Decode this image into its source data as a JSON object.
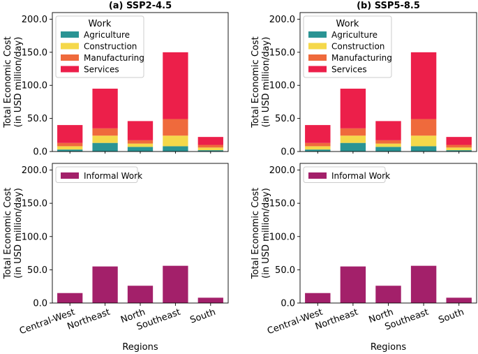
{
  "chart_data": [
    {
      "type": "bar",
      "stacked": true,
      "panel": "top-left",
      "title": "(a) SSP2-4.5",
      "xlabel": "",
      "ylabel": [
        "Total Economic Cost",
        "(in USD million/day)"
      ],
      "ylim": [
        0,
        210
      ],
      "yticks": [
        "0.0",
        "50.0",
        "100.0",
        "150.0",
        "200.0"
      ],
      "categories": [
        "Central-West",
        "Northeast",
        "North",
        "Southeast",
        "South"
      ],
      "legend_title": "Work",
      "legend_position": "top-left",
      "series": [
        {
          "name": "Agriculture",
          "color": "#2a9494",
          "values": [
            3,
            13,
            7,
            8,
            2
          ]
        },
        {
          "name": "Construction",
          "color": "#f5d84a",
          "values": [
            5,
            11,
            5,
            16,
            4
          ]
        },
        {
          "name": "Manufacturing",
          "color": "#ef6a3c",
          "values": [
            5,
            11,
            5,
            25,
            4
          ]
        },
        {
          "name": "Services",
          "color": "#ec1f4a",
          "values": [
            27,
            60,
            29,
            101,
            12
          ]
        }
      ]
    },
    {
      "type": "bar",
      "stacked": true,
      "panel": "top-right",
      "title": "(b) SSP5-8.5",
      "xlabel": "",
      "ylabel": [
        "Total Economic Cost",
        "(in USD million/day)"
      ],
      "ylim": [
        0,
        210
      ],
      "yticks": [
        "0.0",
        "50.0",
        "100.0",
        "150.0",
        "200.0"
      ],
      "categories": [
        "Central-West",
        "Northeast",
        "North",
        "Southeast",
        "South"
      ],
      "legend_title": "Work",
      "legend_position": "top-left",
      "series": [
        {
          "name": "Agriculture",
          "color": "#2a9494",
          "values": [
            3,
            13,
            7,
            8,
            2
          ]
        },
        {
          "name": "Construction",
          "color": "#f5d84a",
          "values": [
            5,
            11,
            5,
            16,
            4
          ]
        },
        {
          "name": "Manufacturing",
          "color": "#ef6a3c",
          "values": [
            5,
            11,
            5,
            25,
            4
          ]
        },
        {
          "name": "Services",
          "color": "#ec1f4a",
          "values": [
            27,
            60,
            29,
            101,
            12
          ]
        }
      ]
    },
    {
      "type": "bar",
      "panel": "bottom-left",
      "title": "",
      "xlabel": "Regions",
      "ylabel": [
        "Total Economic Cost",
        "(in USD million/day)"
      ],
      "ylim": [
        0,
        210
      ],
      "yticks": [
        "0.0",
        "50.0",
        "100.0",
        "150.0",
        "200.0"
      ],
      "categories": [
        "Central-West",
        "Northeast",
        "North",
        "Southeast",
        "South"
      ],
      "legend_title": "",
      "legend_position": "top-left",
      "series": [
        {
          "name": "Informal Work",
          "color": "#a3206a",
          "values": [
            15,
            55,
            26,
            56,
            8
          ]
        }
      ]
    },
    {
      "type": "bar",
      "panel": "bottom-right",
      "title": "",
      "xlabel": "Regions",
      "ylabel": [
        "Total Economic Cost",
        "(in USD million/day)"
      ],
      "ylim": [
        0,
        210
      ],
      "yticks": [
        "0.0",
        "50.0",
        "100.0",
        "150.0",
        "200.0"
      ],
      "categories": [
        "Central-West",
        "Northeast",
        "North",
        "Southeast",
        "South"
      ],
      "legend_title": "",
      "legend_position": "top-left",
      "series": [
        {
          "name": "Informal Work",
          "color": "#a3206a",
          "values": [
            15,
            55,
            26,
            56,
            8
          ]
        }
      ]
    }
  ]
}
